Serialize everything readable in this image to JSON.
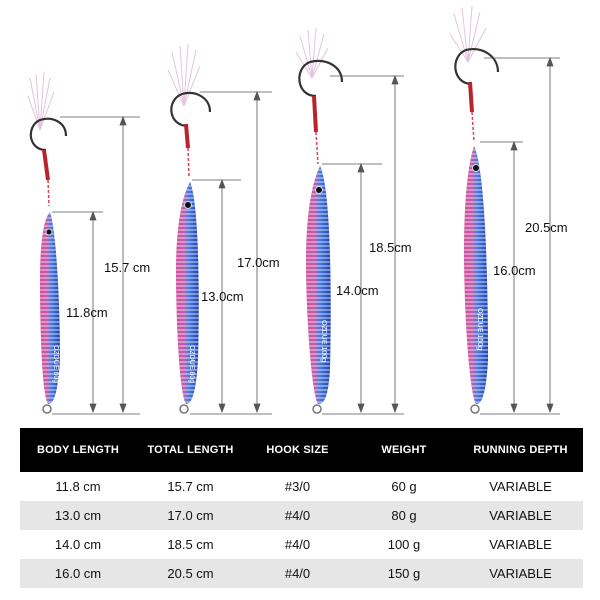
{
  "lures": [
    {
      "body_label": "11.8cm",
      "total_label": "15.7 cm",
      "side_text": "OZDUE 60g"
    },
    {
      "body_label": "13.0cm",
      "total_label": "17.0cm",
      "side_text": "OZDUE 80g"
    },
    {
      "body_label": "14.0cm",
      "total_label": "18.5cm",
      "side_text": "OZDUE 100g"
    },
    {
      "body_label": "16.0cm",
      "total_label": "20.5cm",
      "side_text": "OZDUE 150g"
    }
  ],
  "table": {
    "headers": [
      "BODY LENGTH",
      "TOTAL LENGTH",
      "HOOK SIZE",
      "WEIGHT",
      "RUNNING DEPTH"
    ],
    "rows": [
      [
        "11.8 cm",
        "15.7 cm",
        "#3/0",
        "60 g",
        "VARIABLE"
      ],
      [
        "13.0 cm",
        "17.0 cm",
        "#4/0",
        "80 g",
        "VARIABLE"
      ],
      [
        "14.0 cm",
        "18.5 cm",
        "#4/0",
        "100 g",
        "VARIABLE"
      ],
      [
        "16.0 cm",
        "20.5 cm",
        "#4/0",
        "150 g",
        "VARIABLE"
      ]
    ]
  },
  "colors": {
    "lure_blue": "#2f5fd0",
    "lure_pink": "#d64c9a",
    "scale_silver": "#c9d6ea",
    "assist_cord": "#b8232c",
    "header_bg": "#000000"
  }
}
